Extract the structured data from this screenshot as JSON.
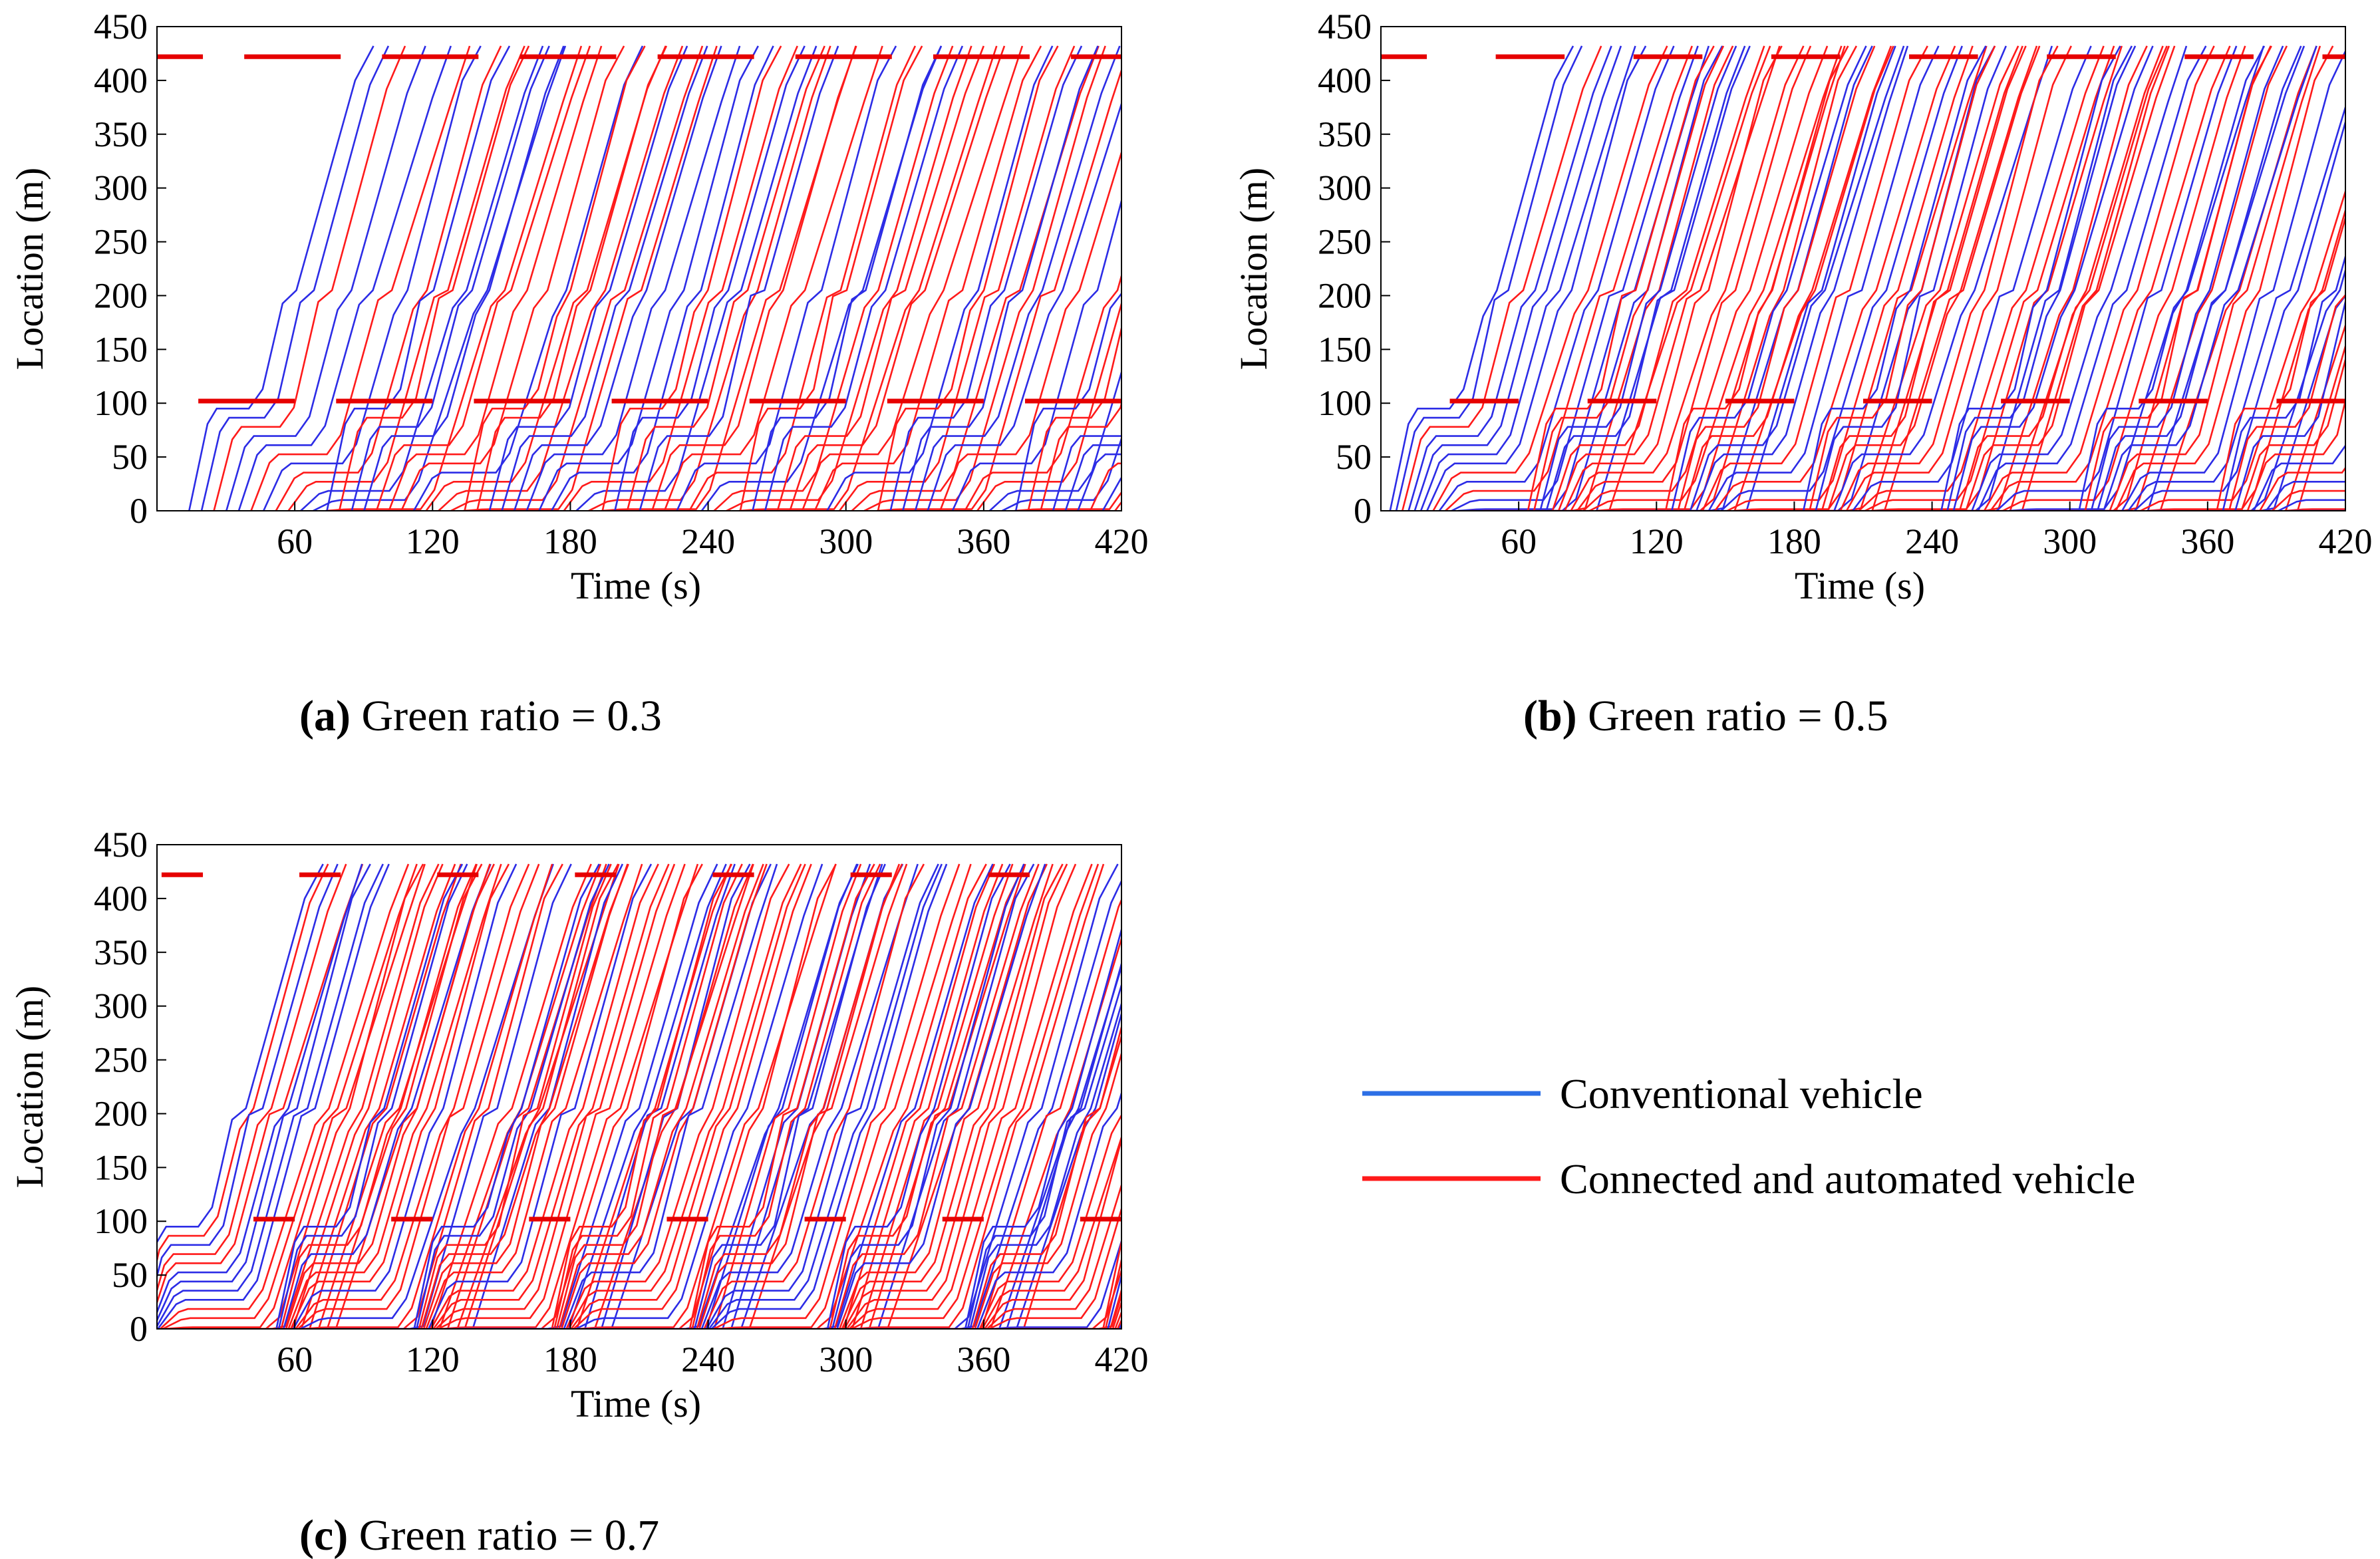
{
  "colors": {
    "conventional": "#2c2ce6",
    "cav": "#ff1a1a",
    "signal": "#e60000",
    "axis": "#000000"
  },
  "legend": {
    "conventional": "Conventional vehicle",
    "cav": "Connected and automated vehicle"
  },
  "chart_data": [
    {
      "type": "line",
      "id": "a",
      "caption_label": "(a)",
      "caption_text": " Green ratio =  0.3",
      "green_ratio": 0.3,
      "xlabel": "Time (s)",
      "ylabel": "Location (m)",
      "xlim": [
        0,
        420
      ],
      "ylim": [
        0,
        450
      ],
      "xticks": [
        60,
        120,
        180,
        240,
        300,
        360,
        420
      ],
      "yticks": [
        0,
        50,
        100,
        150,
        200,
        250,
        300,
        350,
        400,
        450
      ],
      "signals": [
        {
          "location": 102,
          "cycle": 60,
          "offset": 0,
          "green_from": 40,
          "green_to": 60
        },
        {
          "location": 422,
          "cycle": 60,
          "offset": 20,
          "green_from": 40,
          "green_to": 60
        }
      ],
      "vehicles_per_cycle": 12
    },
    {
      "type": "line",
      "id": "b",
      "caption_label": "(b)",
      "caption_text": " Green ratio =  0.5",
      "green_ratio": 0.5,
      "xlabel": "Time (s)",
      "ylabel": "Location (m)",
      "xlim": [
        0,
        420
      ],
      "ylim": [
        0,
        450
      ],
      "xticks": [
        60,
        120,
        180,
        240,
        300,
        360,
        420
      ],
      "yticks": [
        0,
        50,
        100,
        150,
        200,
        250,
        300,
        350,
        400,
        450
      ],
      "signals": [
        {
          "location": 102,
          "cycle": 60,
          "offset": 0,
          "green_from": 30,
          "green_to": 60
        },
        {
          "location": 422,
          "cycle": 60,
          "offset": 20,
          "green_from": 30,
          "green_to": 60
        }
      ],
      "vehicles_per_cycle": 16
    },
    {
      "type": "line",
      "id": "c",
      "caption_label": "(c)",
      "caption_text": " Green ratio =  0.7",
      "green_ratio": 0.7,
      "xlabel": "Time (s)",
      "ylabel": "Location (m)",
      "xlim": [
        0,
        420
      ],
      "ylim": [
        0,
        450
      ],
      "xticks": [
        60,
        120,
        180,
        240,
        300,
        360,
        420
      ],
      "yticks": [
        0,
        50,
        100,
        150,
        200,
        250,
        300,
        350,
        400,
        450
      ],
      "signals": [
        {
          "location": 102,
          "cycle": 60,
          "offset": 0,
          "green_from": 18,
          "green_to": 60
        },
        {
          "location": 422,
          "cycle": 60,
          "offset": 20,
          "green_from": 18,
          "green_to": 60
        }
      ],
      "vehicles_per_cycle": 20
    }
  ]
}
